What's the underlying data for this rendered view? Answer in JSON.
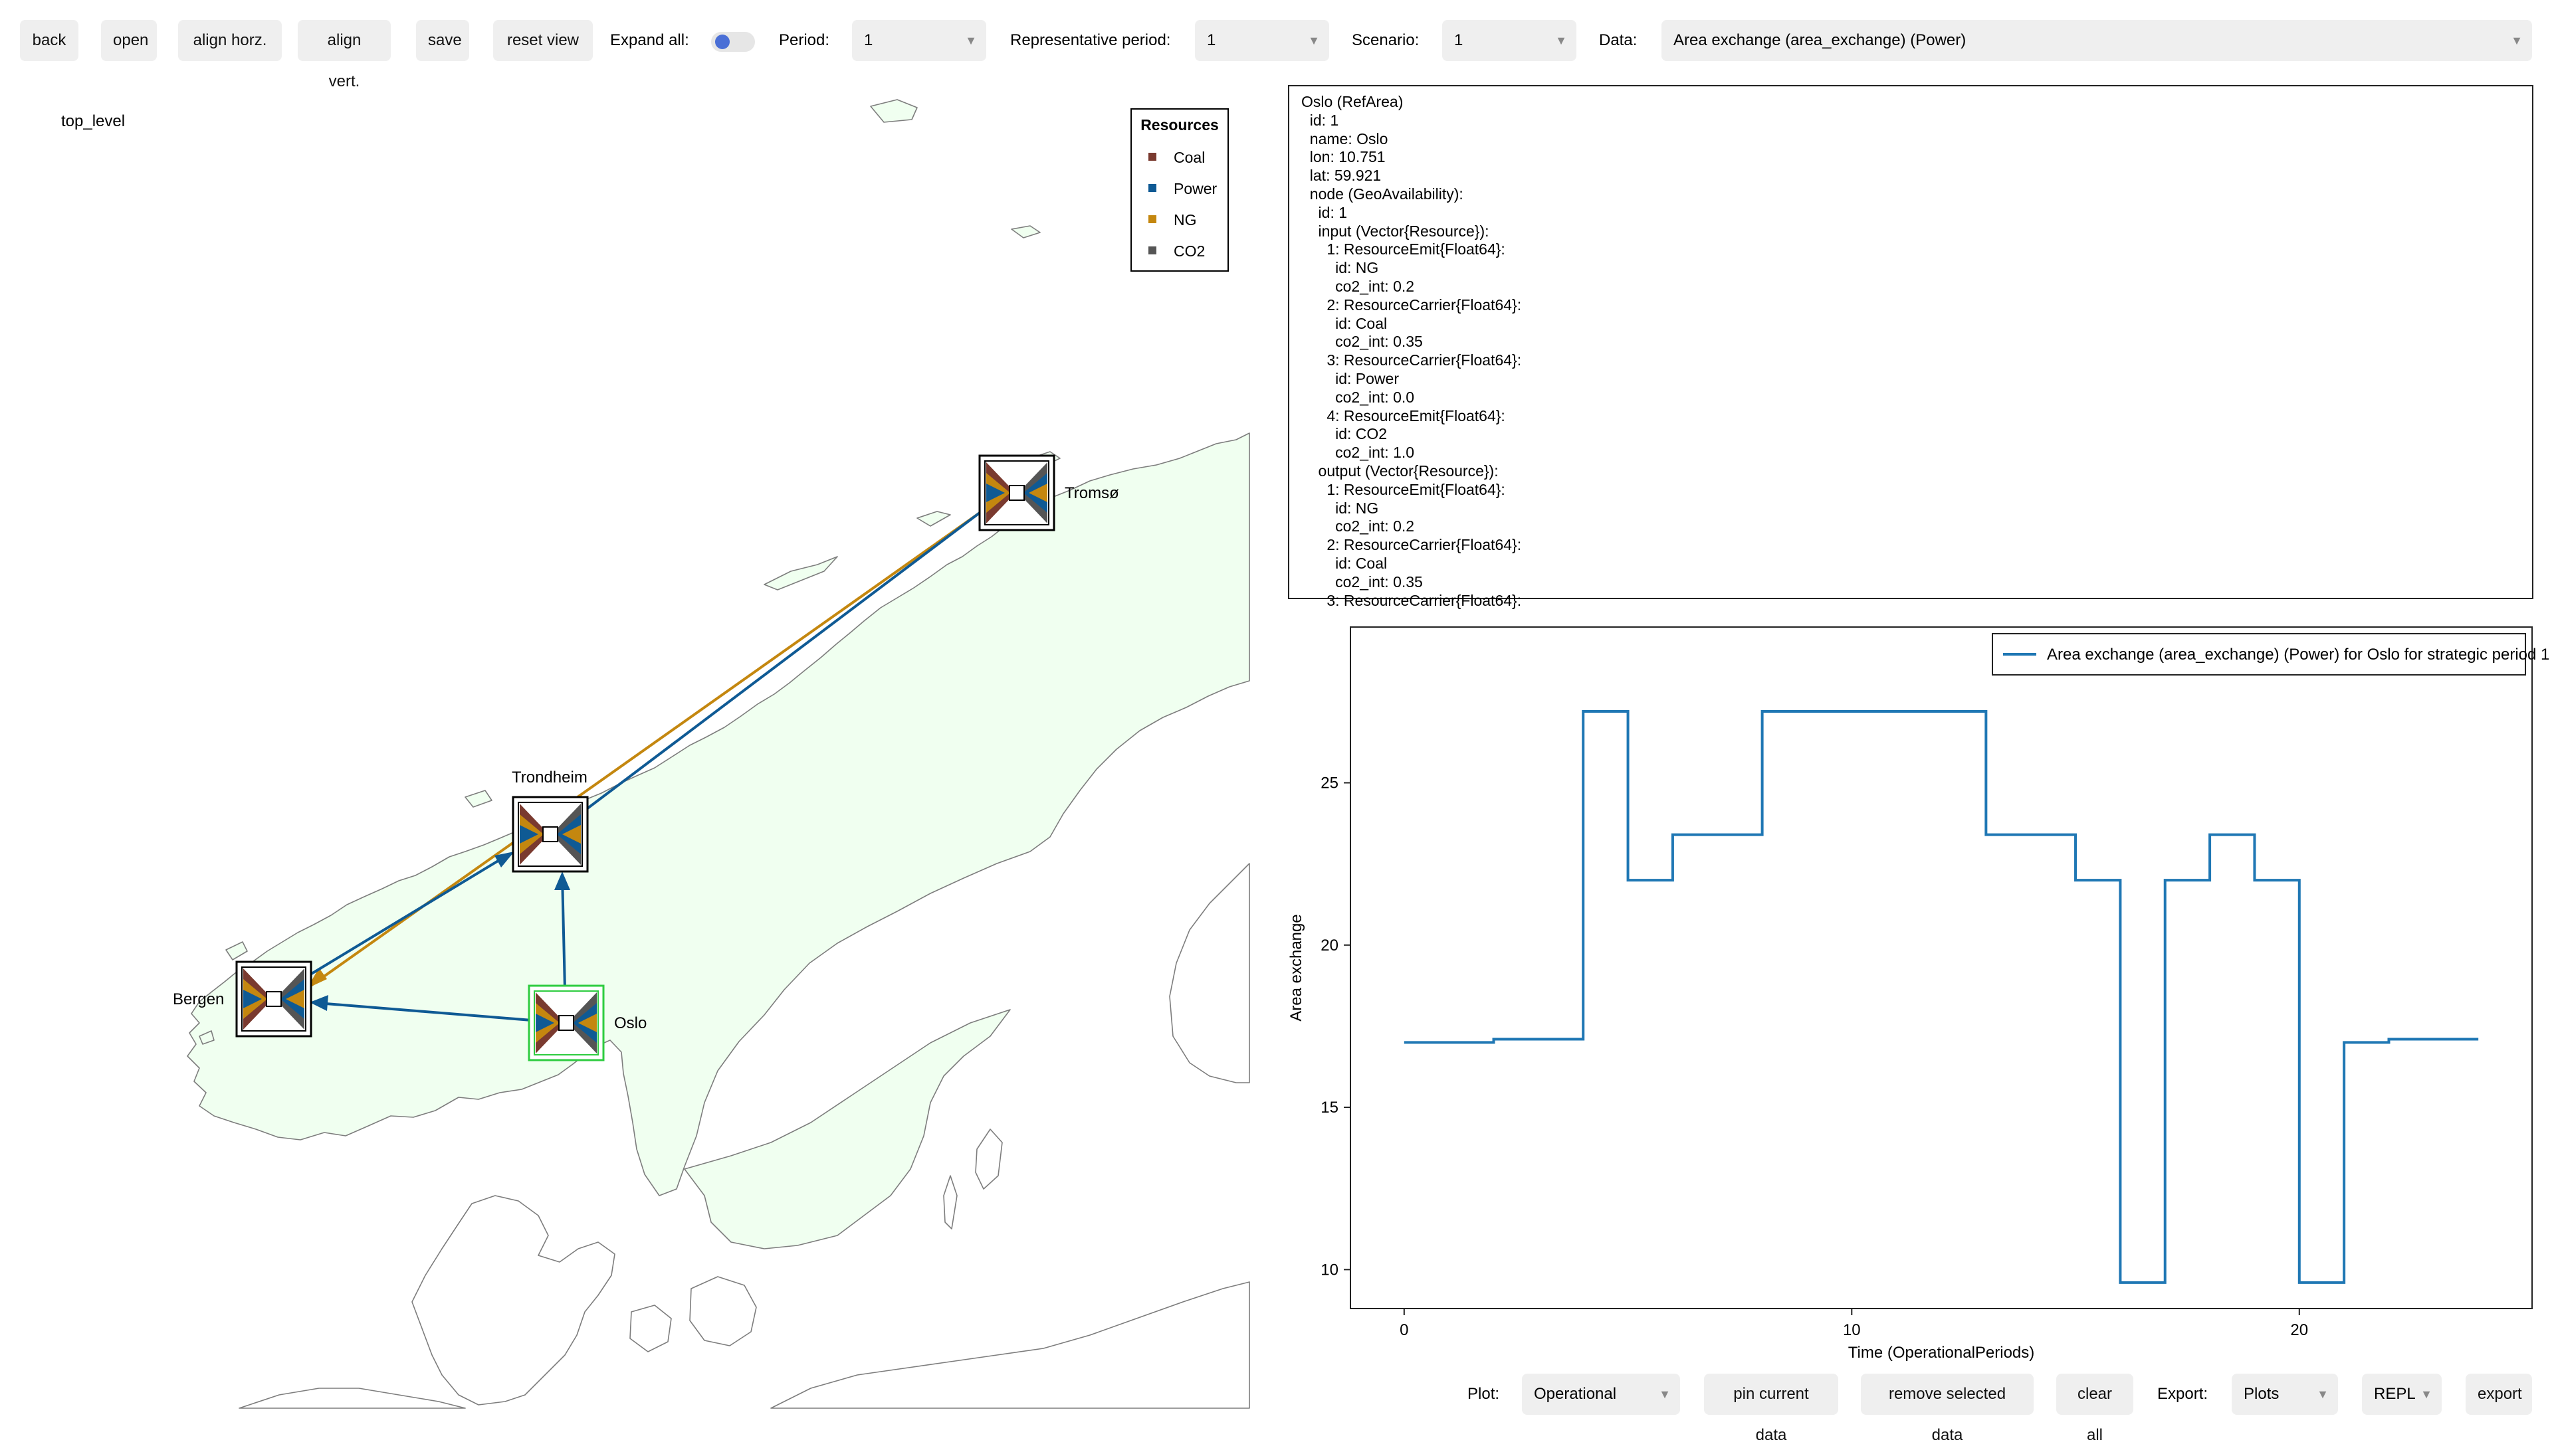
{
  "toolbar": {
    "back": "back",
    "open": "open",
    "align_horz": "align horz.",
    "align_vert": "align vert.",
    "save": "save",
    "reset_view": "reset view",
    "expand_all_label": "Expand all:",
    "period_label": "Period:",
    "period_value": "1",
    "rep_period_label": "Representative period:",
    "rep_period_value": "1",
    "scenario_label": "Scenario:",
    "scenario_value": "1",
    "data_label": "Data:",
    "data_value": "Area exchange (area_exchange) (Power)"
  },
  "map": {
    "level_label": "top_level",
    "legend_title": "Resources",
    "resources": [
      {
        "name": "Coal",
        "color": "#7a3a2f"
      },
      {
        "name": "Power",
        "color": "#0f5a94"
      },
      {
        "name": "NG",
        "color": "#c4870f"
      },
      {
        "name": "CO2",
        "color": "#555555"
      }
    ],
    "areas": [
      {
        "name": "Tromsø"
      },
      {
        "name": "Trondheim"
      },
      {
        "name": "Bergen"
      },
      {
        "name": "Oslo"
      }
    ],
    "selected_area": "Oslo"
  },
  "info_panel": {
    "lines": [
      "Oslo (RefArea)",
      "  id: 1",
      "  name: Oslo",
      "  lon: 10.751",
      "  lat: 59.921",
      "  node (GeoAvailability):",
      "    id: 1",
      "    input (Vector{Resource}):",
      "      1: ResourceEmit{Float64}:",
      "        id: NG",
      "        co2_int: 0.2",
      "      2: ResourceCarrier{Float64}:",
      "        id: Coal",
      "        co2_int: 0.35",
      "      3: ResourceCarrier{Float64}:",
      "        id: Power",
      "        co2_int: 0.0",
      "      4: ResourceEmit{Float64}:",
      "        id: CO2",
      "        co2_int: 1.0",
      "    output (Vector{Resource}):",
      "      1: ResourceEmit{Float64}:",
      "        id: NG",
      "        co2_int: 0.2",
      "      2: ResourceCarrier{Float64}:",
      "        id: Coal",
      "        co2_int: 0.35",
      "      3: ResourceCarrier{Float64}:"
    ]
  },
  "chart_data": {
    "type": "line",
    "step": "post",
    "series": [
      {
        "name": "Area exchange (area_exchange) (Power) for Oslo for strategic period 1",
        "color": "#1f77b4",
        "x": [
          0,
          1,
          2,
          3,
          4,
          5,
          6,
          7,
          8,
          9,
          10,
          11,
          12,
          13,
          14,
          15,
          16,
          17,
          18,
          19,
          20,
          21,
          22,
          23,
          24
        ],
        "values": [
          17.0,
          17.0,
          17.1,
          17.1,
          27.2,
          22.0,
          23.4,
          23.4,
          27.2,
          27.2,
          27.2,
          27.2,
          27.2,
          23.4,
          23.4,
          22.0,
          9.6,
          22.0,
          23.4,
          22.0,
          9.6,
          17.0,
          17.1,
          17.1,
          17.1
        ]
      }
    ],
    "xlabel": "Time (OperationalPeriods)",
    "ylabel": "Area exchange",
    "xticks": [
      0,
      10,
      20
    ],
    "yticks": [
      10,
      15,
      20,
      25
    ],
    "xlim": [
      -1.2,
      25.2
    ],
    "ylim": [
      8.8,
      29.8
    ],
    "legend_position": "top-right"
  },
  "bottom_bar": {
    "plot_label": "Plot:",
    "plot_value": "Operational",
    "pin": "pin current data",
    "remove": "remove selected data",
    "clear": "clear all",
    "export_label": "Export:",
    "export_value": "Plots",
    "repl_value": "REPL",
    "export": "export"
  }
}
